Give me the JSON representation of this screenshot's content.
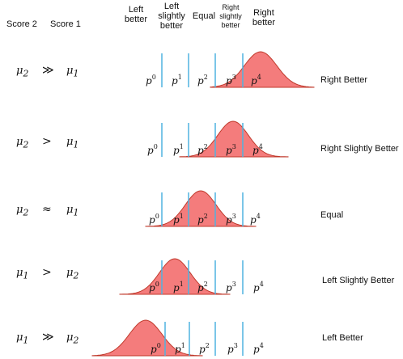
{
  "headers": {
    "score2": "Score 2",
    "score1": "Score 1",
    "col_left_better": [
      "Left",
      "better"
    ],
    "col_left_slightly": [
      "Left",
      "slightly",
      "better"
    ],
    "col_equal": "Equal",
    "col_right_slightly": [
      "Right",
      "slightly",
      "better"
    ],
    "col_right_better": [
      "Right",
      "better"
    ]
  },
  "p_labels": [
    "p",
    "p",
    "p",
    "p",
    "p"
  ],
  "p_superscripts": [
    "0",
    "1",
    "2",
    "3",
    "4"
  ],
  "rows": [
    {
      "lhs": "μ",
      "lhs_sub": "2",
      "op": "≫",
      "rhs": "μ",
      "rhs_sub": "1",
      "label": "Right Better"
    },
    {
      "lhs": "μ",
      "lhs_sub": "2",
      "op": ">",
      "rhs": "μ",
      "rhs_sub": "1",
      "label": "Right Slightly Better"
    },
    {
      "lhs": "μ",
      "lhs_sub": "2",
      "op": "≈",
      "rhs": "μ",
      "rhs_sub": "1",
      "label": "Equal"
    },
    {
      "lhs": "μ",
      "lhs_sub": "1",
      "op": ">",
      "rhs": "μ",
      "rhs_sub": "2",
      "label": "Left Slightly Better"
    },
    {
      "lhs": "μ",
      "lhs_sub": "1",
      "op": "≫",
      "rhs": "μ",
      "rhs_sub": "2",
      "label": "Left Better"
    }
  ],
  "colors": {
    "curve_fill": "#f47c7c",
    "curve_stroke": "#c0392b",
    "divider": "#4fb3e0"
  }
}
